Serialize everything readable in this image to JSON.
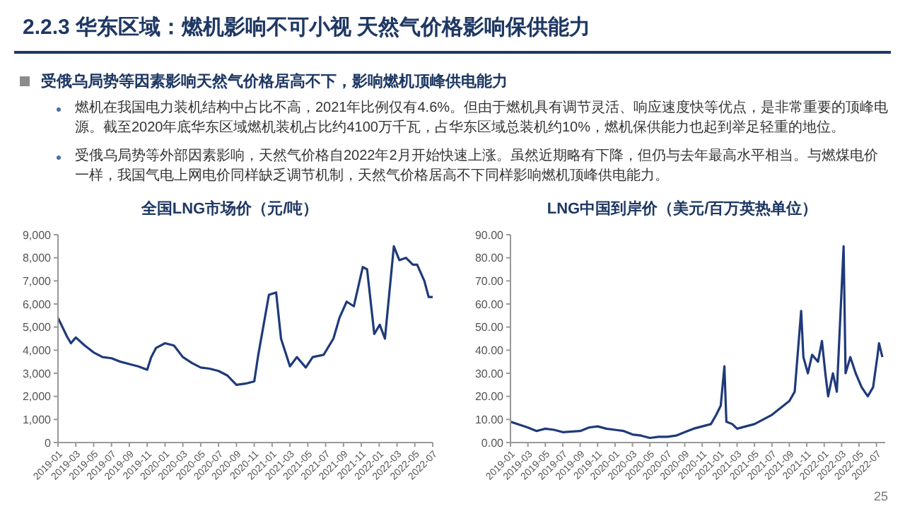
{
  "chart_data": [
    {
      "type": "other",
      "title": "2.2.3 华东区域：燃机影响不可小视  天然气价格影响保供能力",
      "annotations": [
        "受俄乌局势等因素影响天然气价格居高不下，影响燃机顶峰供电能力",
        "燃机在我国电力装机结构中占比不高，2021年比例仅有4.6%。但由于燃机具有调节灵活、响应速度快等优点，是非常重要的顶峰电源。截至2020年底华东区域燃机装机占比约4100万千瓦，占华东区域总装机约10%，燃机保供能力也起到举足轻重的地位。",
        "受俄乌局势等外部因素影响，天然气价格自2022年2月开始快速上涨。虽然近期略有下降，但仍与去年最高水平相当。与燃煤电价一样，我国气电上网电价同样缺乏调节机制，天然气价格居高不下同样影响燃机顶峰供电能力。",
        "25"
      ]
    },
    {
      "type": "line",
      "title": "全国LNG市场价（元/吨）",
      "color": "#1f3a7a",
      "x": [
        "2019-01-01",
        "2019-02-01",
        "2019-02-15",
        "2019-03-01",
        "2019-04-01",
        "2019-05-01",
        "2019-06-01",
        "2019-07-01",
        "2019-08-01",
        "2019-09-01",
        "2019-10-01",
        "2019-11-01",
        "2019-11-15",
        "2019-12-01",
        "2020-01-01",
        "2020-02-01",
        "2020-03-01",
        "2020-04-01",
        "2020-05-01",
        "2020-06-01",
        "2020-07-01",
        "2020-08-01",
        "2020-09-01",
        "2020-10-01",
        "2020-11-01",
        "2020-11-15",
        "2020-12-21",
        "2021-01-15",
        "2021-02-01",
        "2021-03-01",
        "2021-03-25",
        "2021-04-25",
        "2021-05-18",
        "2021-06-25",
        "2021-07-28",
        "2021-08-18",
        "2021-09-12",
        "2021-10-06",
        "2021-11-06",
        "2021-11-21",
        "2021-12-15",
        "2022-01-03",
        "2022-01-21",
        "2022-02-21",
        "2022-03-09",
        "2022-04-01",
        "2022-04-25",
        "2022-05-09",
        "2022-06-03",
        "2022-06-18",
        "2022-07-01"
      ],
      "values": [
        5400,
        4600,
        4300,
        4550,
        4200,
        3900,
        3700,
        3650,
        3500,
        3400,
        3300,
        3150,
        3700,
        4100,
        4300,
        4200,
        3700,
        3450,
        3250,
        3200,
        3100,
        2900,
        2500,
        2550,
        2650,
        3800,
        6400,
        6500,
        4500,
        3300,
        3700,
        3250,
        3700,
        3800,
        4500,
        5400,
        6100,
        5900,
        7600,
        7500,
        4700,
        5100,
        4500,
        8500,
        7900,
        8000,
        7700,
        7700,
        7000,
        6300,
        6300
      ],
      "xlim": [
        "2019-01",
        "2022-07"
      ],
      "xticks": [
        "2019-01",
        "2019-03",
        "2019-05",
        "2019-07",
        "2019-09",
        "2019-11",
        "2020-01",
        "2020-03",
        "2020-05",
        "2020-07",
        "2020-09",
        "2020-11",
        "2021-01",
        "2021-03",
        "2021-05",
        "2021-07",
        "2021-09",
        "2021-11",
        "2022-01",
        "2022-03",
        "2022-05",
        "2022-07"
      ],
      "ylim": [
        0,
        9000
      ],
      "yticks": [
        {
          "value": 0,
          "label": "0"
        },
        {
          "value": 1000,
          "label": "1,000"
        },
        {
          "value": 2000,
          "label": "2,000"
        },
        {
          "value": 3000,
          "label": "3,000"
        },
        {
          "value": 4000,
          "label": "4,000"
        },
        {
          "value": 5000,
          "label": "5,000"
        },
        {
          "value": 6000,
          "label": "6,000"
        },
        {
          "value": 7000,
          "label": "7,000"
        },
        {
          "value": 8000,
          "label": "8,000"
        },
        {
          "value": 9000,
          "label": "9,000"
        }
      ],
      "grid": false,
      "legend": false,
      "marker": "none",
      "line_style": "solid"
    },
    {
      "type": "line",
      "title": "LNG中国到岸价（美元/百万英热单位）",
      "color": "#1f3a7a",
      "x": [
        "2019-01-01",
        "2019-03-01",
        "2019-04-01",
        "2019-05-01",
        "2019-06-01",
        "2019-07-01",
        "2019-09-01",
        "2019-10-01",
        "2019-11-01",
        "2019-12-01",
        "2020-01-01",
        "2020-02-01",
        "2020-03-01",
        "2020-04-01",
        "2020-05-01",
        "2020-06-01",
        "2020-07-01",
        "2020-08-01",
        "2020-09-01",
        "2020-10-01",
        "2020-11-01",
        "2020-12-01",
        "2020-12-20",
        "2021-01-05",
        "2021-01-18",
        "2021-01-25",
        "2021-02-15",
        "2021-03-01",
        "2021-04-01",
        "2021-05-01",
        "2021-06-01",
        "2021-07-01",
        "2021-08-01",
        "2021-09-01",
        "2021-09-20",
        "2021-10-12",
        "2021-10-20",
        "2021-11-05",
        "2021-11-20",
        "2021-12-10",
        "2021-12-24",
        "2022-01-05",
        "2022-01-15",
        "2022-02-01",
        "2022-02-15",
        "2022-03-08",
        "2022-03-15",
        "2022-04-01",
        "2022-04-20",
        "2022-05-10",
        "2022-06-01",
        "2022-06-20",
        "2022-07-05",
        "2022-07-10",
        "2022-07-22"
      ],
      "values": [
        9,
        6.5,
        5,
        6,
        5.5,
        4.5,
        5,
        6.5,
        7,
        6,
        5.5,
        5,
        3.5,
        3,
        2,
        2.5,
        2.5,
        3,
        4.5,
        6,
        7,
        8,
        12,
        16,
        33,
        9,
        8,
        6,
        7,
        8,
        10,
        12,
        15,
        18,
        22,
        57,
        37,
        30,
        38,
        35,
        44,
        30,
        20,
        30,
        22,
        85,
        30,
        37,
        30,
        24,
        20,
        24,
        38,
        43,
        37
      ],
      "xlim": [
        "2019-01",
        "2022-08"
      ],
      "xticks": [
        "2019-01",
        "2019-03",
        "2019-05",
        "2019-07",
        "2019-09",
        "2019-11",
        "2020-01",
        "2020-03",
        "2020-05",
        "2020-07",
        "2020-09",
        "2020-11",
        "2021-01",
        "2021-03",
        "2021-05",
        "2021-07",
        "2021-09",
        "2021-11",
        "2022-01",
        "2022-03",
        "2022-05",
        "2022-07"
      ],
      "ylim": [
        0,
        90
      ],
      "yticks": [
        {
          "value": 0,
          "label": "0.00"
        },
        {
          "value": 10,
          "label": "10.00"
        },
        {
          "value": 20,
          "label": "20.00"
        },
        {
          "value": 30,
          "label": "30.00"
        },
        {
          "value": 40,
          "label": "40.00"
        },
        {
          "value": 50,
          "label": "50.00"
        },
        {
          "value": 60,
          "label": "60.00"
        },
        {
          "value": 70,
          "label": "70.00"
        },
        {
          "value": 80,
          "label": "80.00"
        },
        {
          "value": 90,
          "label": "90.00"
        }
      ],
      "grid": false,
      "legend": false,
      "marker": "none",
      "line_style": "solid"
    }
  ]
}
